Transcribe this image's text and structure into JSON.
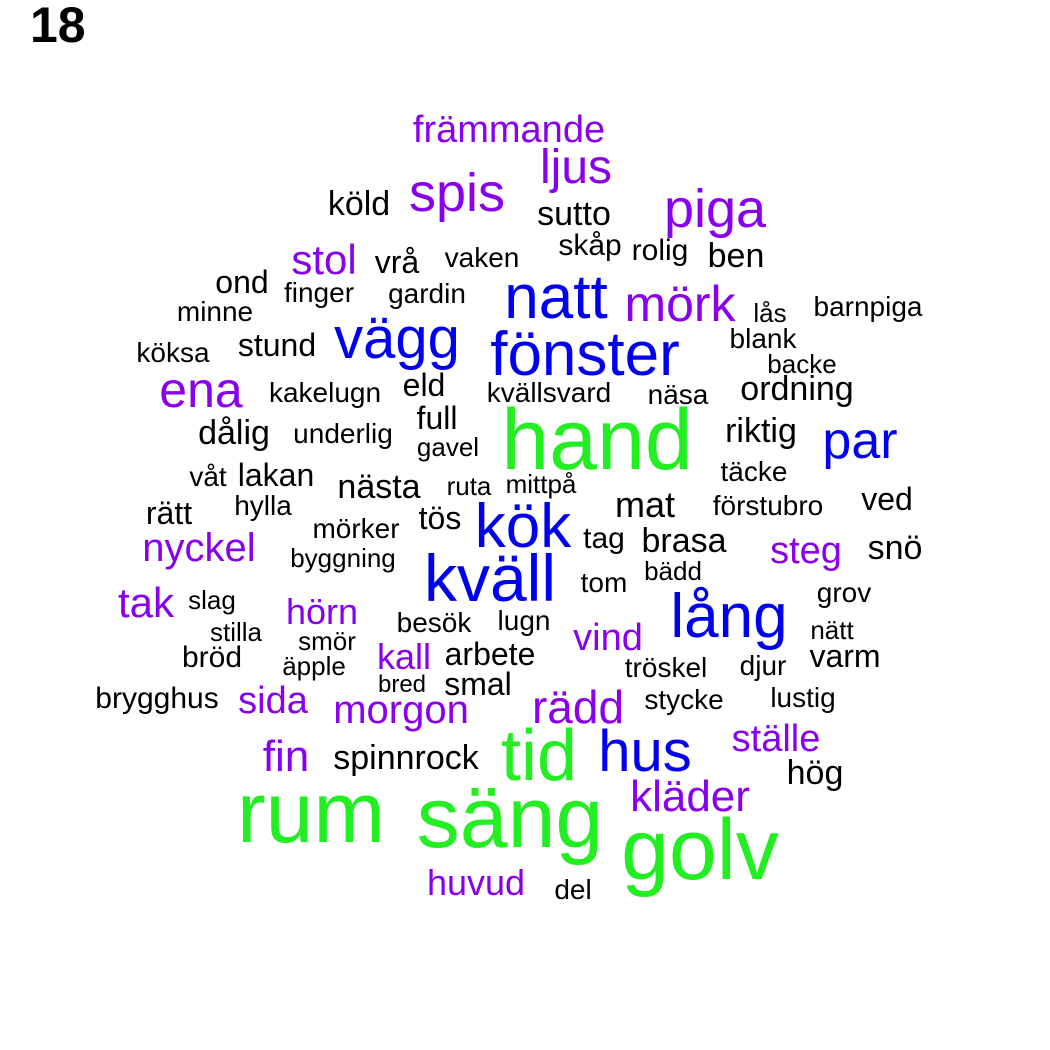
{
  "page_number": "18",
  "colors": {
    "tier1": "#22ee22",
    "tier2": "#0000ee",
    "tier3": "#8800ee",
    "tier4": "#000000"
  },
  "words": [
    {
      "text": "rum",
      "tier": 1
    },
    {
      "text": "säng",
      "tier": 1
    },
    {
      "text": "golv",
      "tier": 1
    },
    {
      "text": "hand",
      "tier": 1
    },
    {
      "text": "tid",
      "tier": 1
    },
    {
      "text": "fönster",
      "tier": 2
    },
    {
      "text": "natt",
      "tier": 2
    },
    {
      "text": "kväll",
      "tier": 2
    },
    {
      "text": "kök",
      "tier": 2
    },
    {
      "text": "lång",
      "tier": 2
    },
    {
      "text": "hus",
      "tier": 2
    },
    {
      "text": "vägg",
      "tier": 2
    },
    {
      "text": "par",
      "tier": 2
    },
    {
      "text": "främmande",
      "tier": 3
    },
    {
      "text": "ljus",
      "tier": 3
    },
    {
      "text": "spis",
      "tier": 3
    },
    {
      "text": "piga",
      "tier": 3
    },
    {
      "text": "stol",
      "tier": 3
    },
    {
      "text": "mörk",
      "tier": 3
    },
    {
      "text": "ena",
      "tier": 3
    },
    {
      "text": "nyckel",
      "tier": 3
    },
    {
      "text": "steg",
      "tier": 3
    },
    {
      "text": "tak",
      "tier": 3
    },
    {
      "text": "hörn",
      "tier": 3
    },
    {
      "text": "vind",
      "tier": 3
    },
    {
      "text": "kall",
      "tier": 3
    },
    {
      "text": "sida",
      "tier": 3
    },
    {
      "text": "morgon",
      "tier": 3
    },
    {
      "text": "rädd",
      "tier": 3
    },
    {
      "text": "ställe",
      "tier": 3
    },
    {
      "text": "fin",
      "tier": 3
    },
    {
      "text": "kläder",
      "tier": 3
    },
    {
      "text": "huvud",
      "tier": 3
    },
    {
      "text": "köld",
      "tier": 4
    },
    {
      "text": "sutto",
      "tier": 4
    },
    {
      "text": "skåp",
      "tier": 4
    },
    {
      "text": "rolig",
      "tier": 4
    },
    {
      "text": "ben",
      "tier": 4
    },
    {
      "text": "vrå",
      "tier": 4
    },
    {
      "text": "vaken",
      "tier": 4
    },
    {
      "text": "ond",
      "tier": 4
    },
    {
      "text": "finger",
      "tier": 4
    },
    {
      "text": "gardin",
      "tier": 4
    },
    {
      "text": "minne",
      "tier": 4
    },
    {
      "text": "lås",
      "tier": 4
    },
    {
      "text": "barnpiga",
      "tier": 4
    },
    {
      "text": "stund",
      "tier": 4
    },
    {
      "text": "blank",
      "tier": 4
    },
    {
      "text": "köksa",
      "tier": 4
    },
    {
      "text": "backe",
      "tier": 4
    },
    {
      "text": "eld",
      "tier": 4
    },
    {
      "text": "kakelugn",
      "tier": 4
    },
    {
      "text": "kvällsvard",
      "tier": 4
    },
    {
      "text": "näsa",
      "tier": 4
    },
    {
      "text": "ordning",
      "tier": 4
    },
    {
      "text": "full",
      "tier": 4
    },
    {
      "text": "dålig",
      "tier": 4
    },
    {
      "text": "underlig",
      "tier": 4
    },
    {
      "text": "riktig",
      "tier": 4
    },
    {
      "text": "gavel",
      "tier": 4
    },
    {
      "text": "våt",
      "tier": 4
    },
    {
      "text": "lakan",
      "tier": 4
    },
    {
      "text": "täcke",
      "tier": 4
    },
    {
      "text": "nästa",
      "tier": 4
    },
    {
      "text": "ruta",
      "tier": 4
    },
    {
      "text": "mittpå",
      "tier": 4
    },
    {
      "text": "ved",
      "tier": 4
    },
    {
      "text": "hylla",
      "tier": 4
    },
    {
      "text": "rätt",
      "tier": 4
    },
    {
      "text": "mat",
      "tier": 4
    },
    {
      "text": "förstubro",
      "tier": 4
    },
    {
      "text": "tös",
      "tier": 4
    },
    {
      "text": "mörker",
      "tier": 4
    },
    {
      "text": "tag",
      "tier": 4
    },
    {
      "text": "brasa",
      "tier": 4
    },
    {
      "text": "snö",
      "tier": 4
    },
    {
      "text": "byggning",
      "tier": 4
    },
    {
      "text": "bädd",
      "tier": 4
    },
    {
      "text": "tom",
      "tier": 4
    },
    {
      "text": "grov",
      "tier": 4
    },
    {
      "text": "slag",
      "tier": 4
    },
    {
      "text": "besök",
      "tier": 4
    },
    {
      "text": "lugn",
      "tier": 4
    },
    {
      "text": "stilla",
      "tier": 4
    },
    {
      "text": "nätt",
      "tier": 4
    },
    {
      "text": "smör",
      "tier": 4
    },
    {
      "text": "bröd",
      "tier": 4
    },
    {
      "text": "arbete",
      "tier": 4
    },
    {
      "text": "varm",
      "tier": 4
    },
    {
      "text": "äpple",
      "tier": 4
    },
    {
      "text": "tröskel",
      "tier": 4
    },
    {
      "text": "djur",
      "tier": 4
    },
    {
      "text": "bred",
      "tier": 4
    },
    {
      "text": "smal",
      "tier": 4
    },
    {
      "text": "brygghus",
      "tier": 4
    },
    {
      "text": "stycke",
      "tier": 4
    },
    {
      "text": "lustig",
      "tier": 4
    },
    {
      "text": "spinnrock",
      "tier": 4
    },
    {
      "text": "hög",
      "tier": 4
    },
    {
      "text": "del",
      "tier": 4
    }
  ]
}
